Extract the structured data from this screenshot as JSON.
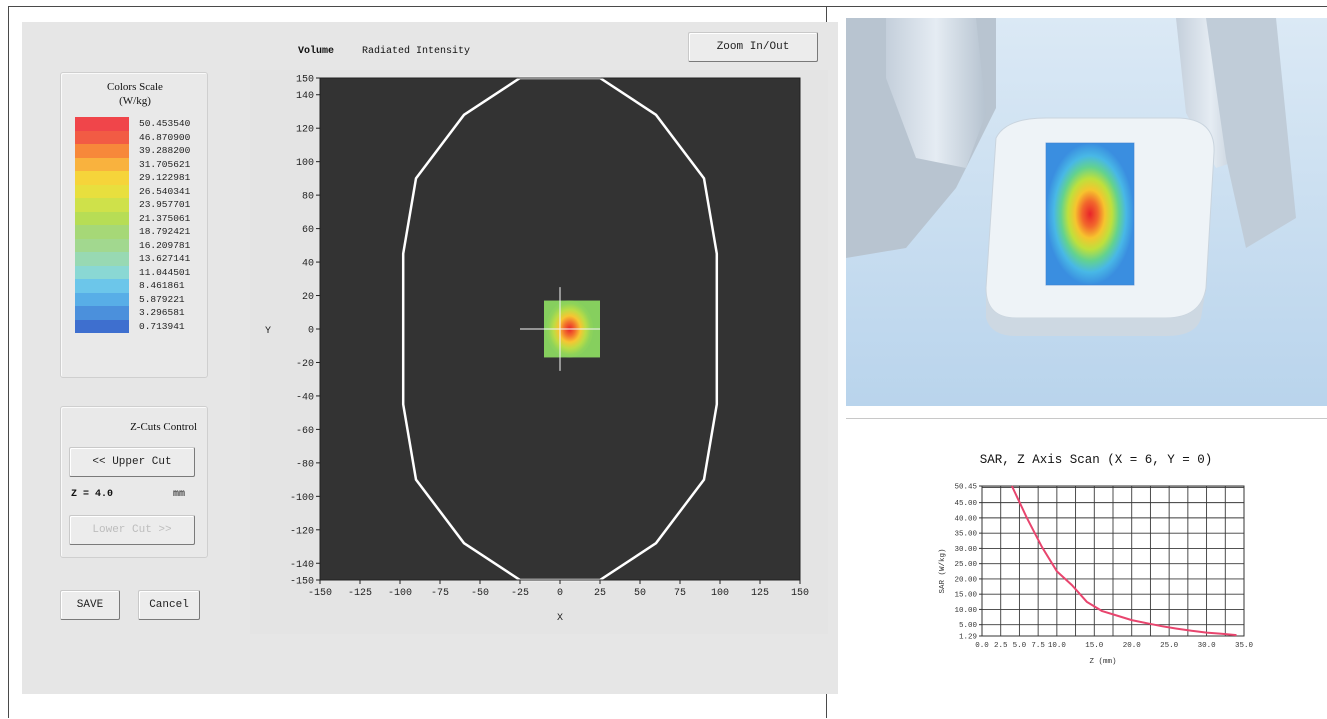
{
  "color_scale": {
    "title": "Colors Scale",
    "unit": "(W/kg)",
    "entries": [
      {
        "value": "50.453540",
        "color": "#f0454a"
      },
      {
        "value": "46.870900",
        "color": "#f25b44"
      },
      {
        "value": "39.288200",
        "color": "#f7883a"
      },
      {
        "value": "31.705621",
        "color": "#f9b23e"
      },
      {
        "value": "29.122981",
        "color": "#f6d43a"
      },
      {
        "value": "26.540341",
        "color": "#e8df3e"
      },
      {
        "value": "23.957701",
        "color": "#cfe14a"
      },
      {
        "value": "21.375061",
        "color": "#b7dd55"
      },
      {
        "value": "18.792421",
        "color": "#a6d877"
      },
      {
        "value": "16.209781",
        "color": "#a2d88f"
      },
      {
        "value": "13.627141",
        "color": "#98d9b3"
      },
      {
        "value": "11.044501",
        "color": "#8ad8d4"
      },
      {
        "value": "8.461861",
        "color": "#6cc6ea"
      },
      {
        "value": "5.879221",
        "color": "#58aee7"
      },
      {
        "value": "3.296581",
        "color": "#4b90dc"
      },
      {
        "value": "0.713941",
        "color": "#3e6fcf"
      }
    ]
  },
  "zcuts": {
    "title": "Z-Cuts Control",
    "upper_button": "<< Upper Cut",
    "z_label": "Z = 4.0",
    "z_unit": "mm",
    "lower_button": "Lower Cut >>"
  },
  "buttons": {
    "save": "SAVE",
    "cancel": "Cancel",
    "zoom": "Zoom In/Out"
  },
  "volume_header": {
    "label": "Volume",
    "mode": "Radiated Intensity"
  },
  "map_plot": {
    "x_label": "X",
    "y_label": "Y",
    "x_ticks": [
      "-150",
      "-125",
      "-100",
      "-75",
      "-50",
      "-25",
      "0",
      "25",
      "50",
      "75",
      "100",
      "125",
      "150"
    ],
    "y_ticks": [
      "150",
      "140",
      "120",
      "100",
      "80",
      "60",
      "40",
      "20",
      "0",
      "-20",
      "-40",
      "-60",
      "-80",
      "-100",
      "-120",
      "-140",
      "-150"
    ],
    "background": "#333333"
  },
  "chart_data": {
    "type": "line",
    "title": "SAR, Z Axis Scan (X = 6, Y = 0)",
    "xlabel": "Z (mm)",
    "ylabel": "SAR (W/kg)",
    "xlim": [
      0,
      35
    ],
    "ylim": [
      1.29,
      50.45
    ],
    "x_ticks": [
      "0.0",
      "2.5",
      "5.0",
      "7.5",
      "10.0",
      "15.0",
      "20.0",
      "25.0",
      "30.0",
      "35.0"
    ],
    "y_ticks": [
      "50.45",
      "45.00",
      "40.00",
      "35.00",
      "30.00",
      "25.00",
      "20.00",
      "15.00",
      "10.00",
      "5.00",
      "1.29"
    ],
    "grid": true,
    "line_color": "#e8456e",
    "series": [
      {
        "x": [
          4.0,
          6.0,
          8.0,
          10.0,
          12.0,
          14.0,
          16.0,
          18.0,
          20.0,
          22.0,
          24.0,
          26.0,
          28.0,
          30.0,
          32.0,
          34.0
        ],
        "y": [
          50.45,
          40.0,
          30.5,
          22.5,
          18.0,
          12.5,
          9.5,
          8.0,
          6.5,
          5.5,
          4.5,
          3.7,
          3.0,
          2.4,
          2.0,
          1.6
        ]
      }
    ]
  }
}
